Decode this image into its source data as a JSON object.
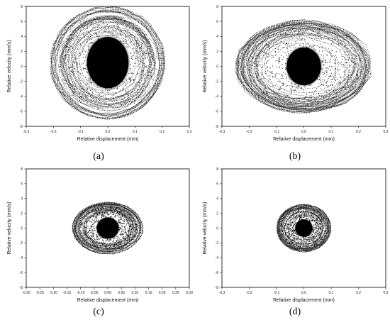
{
  "chart_data": [
    {
      "type": "scatter",
      "panel_label": "(a)",
      "xlabel": "Relative displacement (mm)",
      "ylabel": "Relative velocity (mm/s)",
      "xlim": [
        -0.3,
        0.3
      ],
      "ylim": [
        -8,
        8
      ],
      "xticks": [
        -0.3,
        -0.2,
        -0.1,
        0.0,
        0.1,
        0.2,
        0.3
      ],
      "xtick_labels": [
        "-0.3",
        "-0.2",
        "-0.1",
        "0.0",
        "0.1",
        "0.2",
        "0.3"
      ],
      "yticks": [
        -8,
        -6,
        -4,
        -2,
        0,
        2,
        4,
        6,
        8
      ],
      "ytick_labels": [
        "-8",
        "-6",
        "-4",
        "-2",
        "0",
        "2",
        "4",
        "6",
        "8"
      ],
      "cloud": {
        "center_x": 0.0,
        "center_y": 0.5,
        "core_rx": 0.085,
        "core_ry": 3.8,
        "outer_rx": 0.21,
        "outer_ry": 7.5
      },
      "grid": false,
      "legend": "none"
    },
    {
      "type": "scatter",
      "panel_label": "(b)",
      "xlabel": "Relative displacement (mm)",
      "ylabel": "Relative velocity (mm/s)",
      "xlim": [
        -0.3,
        0.3
      ],
      "ylim": [
        -8,
        8
      ],
      "xticks": [
        -0.3,
        -0.2,
        -0.1,
        0.0,
        0.1,
        0.2,
        0.3
      ],
      "xtick_labels": [
        "-0.3",
        "-0.2",
        "-0.1",
        "0.0",
        "0.1",
        "0.2",
        "0.3"
      ],
      "yticks": [
        -8,
        -6,
        -4,
        -2,
        0,
        2,
        4,
        6,
        8
      ],
      "ytick_labels": [
        "-8",
        "-6",
        "-4",
        "-2",
        "0",
        "2",
        "4",
        "6",
        "8"
      ],
      "cloud": {
        "center_x": 0.0,
        "center_y": 0.0,
        "core_rx": 0.07,
        "core_ry": 2.8,
        "outer_rx": 0.25,
        "outer_ry": 6.2
      },
      "grid": false,
      "legend": "none"
    },
    {
      "type": "scatter",
      "panel_label": "(c)",
      "xlabel": "Relative displacement (mm)",
      "ylabel": "Relative velocity (mm/s)",
      "xlim": [
        -0.3,
        0.3
      ],
      "ylim": [
        -8,
        8
      ],
      "xticks": [
        -0.3,
        -0.25,
        -0.2,
        -0.15,
        -0.1,
        -0.05,
        0.0,
        0.05,
        0.1,
        0.15,
        0.2,
        0.25,
        0.3
      ],
      "xtick_labels": [
        "-0.30",
        "-0.25",
        "-0.20",
        "-0.15",
        "-0.10",
        "-0.05",
        "0.00",
        "0.05",
        "0.10",
        "0.15",
        "0.20",
        "0.25",
        "0.30"
      ],
      "yticks": [
        -8,
        -6,
        -4,
        -2,
        0,
        2,
        4,
        6,
        8
      ],
      "ytick_labels": [
        "-8",
        "-6",
        "-4",
        "-2",
        "0",
        "2",
        "4",
        "6",
        "8"
      ],
      "cloud": {
        "center_x": 0.0,
        "center_y": 0.0,
        "core_rx": 0.045,
        "core_ry": 1.6,
        "outer_rx": 0.13,
        "outer_ry": 3.5
      },
      "grid": false,
      "legend": "none"
    },
    {
      "type": "scatter",
      "panel_label": "(d)",
      "xlabel": "Relative displacement (mm)",
      "ylabel": "Relative velocity (mm/s)",
      "xlim": [
        -0.3,
        0.3
      ],
      "ylim": [
        -8,
        8
      ],
      "xticks": [
        -0.3,
        -0.2,
        -0.1,
        0.0,
        0.1,
        0.2,
        0.3
      ],
      "xtick_labels": [
        "-0.3",
        "-0.2",
        "-0.1",
        "0.0",
        "0.1",
        "0.2",
        "0.3"
      ],
      "yticks": [
        -8,
        -6,
        -4,
        -2,
        0,
        2,
        4,
        6,
        8
      ],
      "ytick_labels": [
        "-8",
        "-6",
        "-4",
        "-2",
        "0",
        "2",
        "4",
        "6",
        "8"
      ],
      "cloud": {
        "center_x": 0.0,
        "center_y": 0.0,
        "core_rx": 0.035,
        "core_ry": 1.3,
        "outer_rx": 0.1,
        "outer_ry": 3.2
      },
      "grid": false,
      "legend": "none"
    }
  ]
}
